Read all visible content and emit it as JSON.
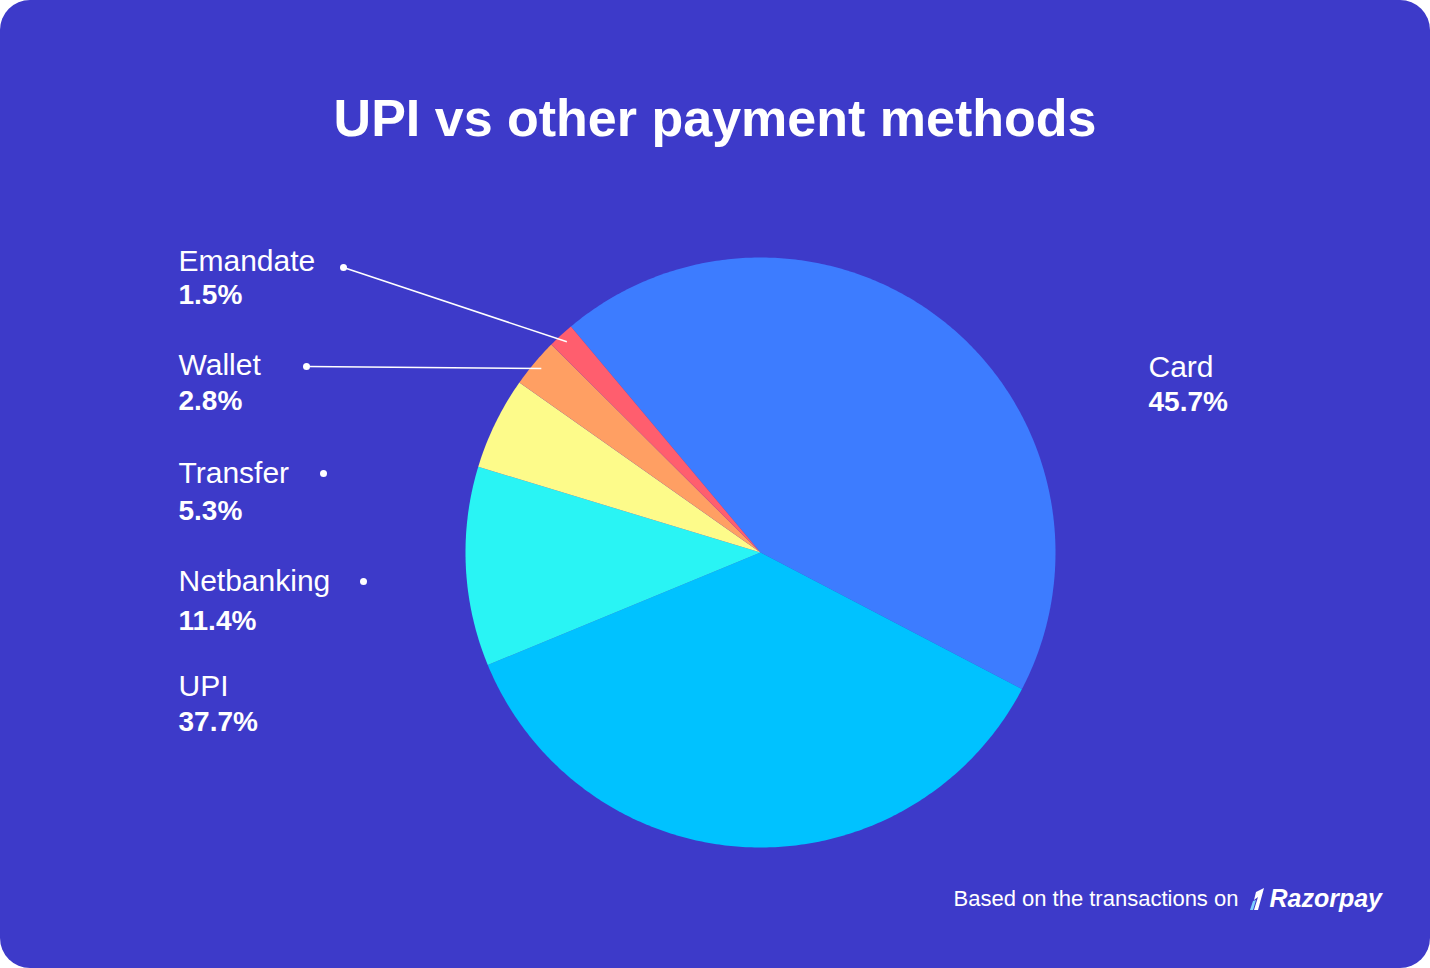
{
  "chart_data": {
    "type": "pie",
    "title": "UPI vs other payment methods",
    "categories": [
      "Card",
      "UPI",
      "Netbanking",
      "Transfer",
      "Wallet",
      "Emandate"
    ],
    "values": [
      45.7,
      37.7,
      11.4,
      5.3,
      2.8,
      1.5
    ],
    "value_labels": [
      "45.7%",
      "37.7%",
      "11.4%",
      "5.3%",
      "2.8%",
      "1.5%"
    ],
    "colors": [
      "#3d7cff",
      "#00c2ff",
      "#29f4f4",
      "#fdfb8a",
      "#ff9f63",
      "#ff5e6e"
    ],
    "data_labels": true,
    "caption": "Based on the transactions on",
    "caption_brand": "Razorpay"
  }
}
